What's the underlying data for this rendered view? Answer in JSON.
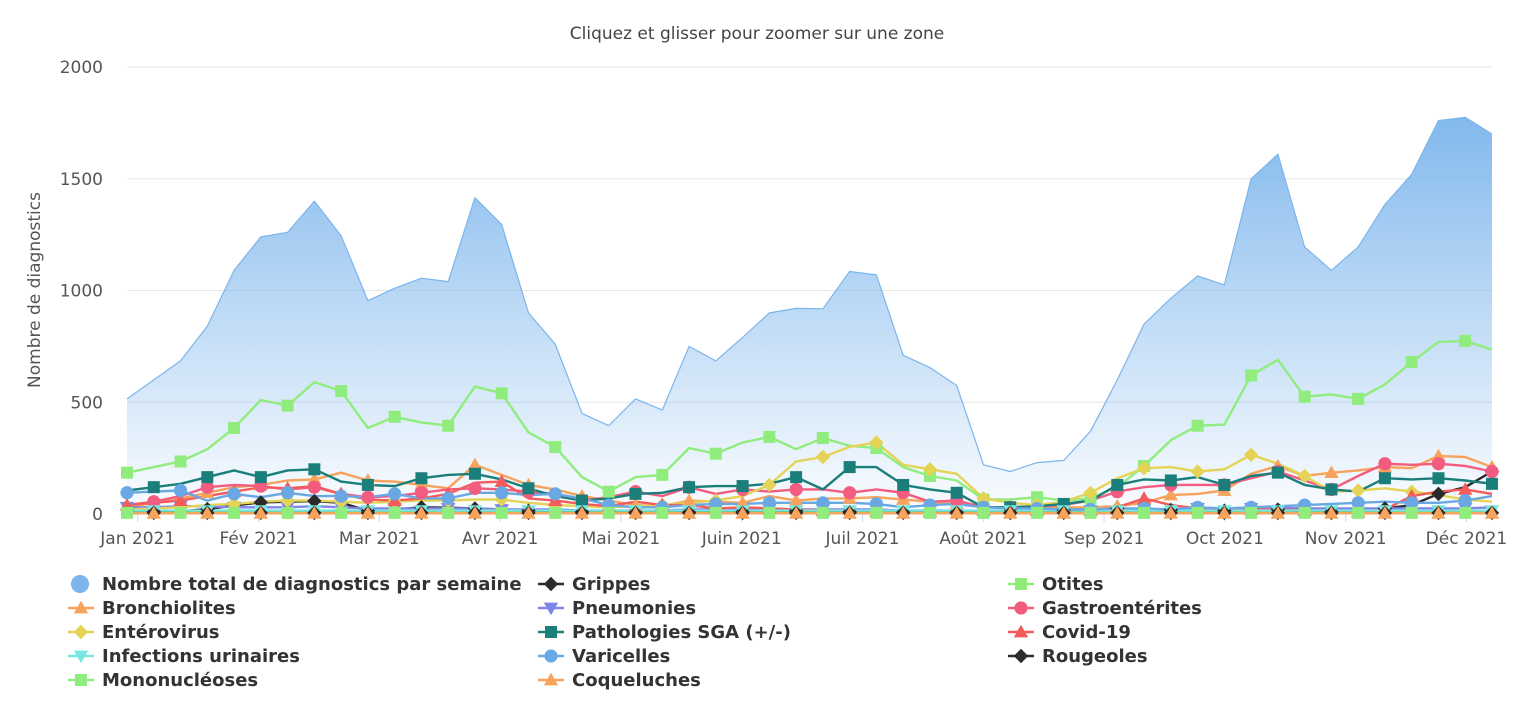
{
  "chart_data": {
    "type": "area",
    "subtitle": "Cliquez et glisser pour zoomer sur une zone",
    "ylabel": "Nombre de diagnostics",
    "ylim": [
      0,
      2000
    ],
    "yticks": [
      "0",
      "500",
      "1000",
      "1500",
      "2000"
    ],
    "xticks": [
      "Jan 2021",
      "Fév 2021",
      "Mar 2021",
      "Avr 2021",
      "Mai 2021",
      "Juin 2021",
      "Juil 2021",
      "Août 2021",
      "Sep 2021",
      "Oct 2021",
      "Nov 2021",
      "Déc 2021"
    ],
    "grid": true,
    "legend_position": "bottom",
    "series": [
      {
        "name": "Nombre total de diagnostics par semaine",
        "kind": "area",
        "color": "#7cb5ec",
        "marker": "circle",
        "values": [
          515,
          600,
          685,
          840,
          1090,
          1240,
          1260,
          1400,
          1245,
          955,
          1010,
          1055,
          1040,
          1415,
          1295,
          900,
          760,
          450,
          395,
          515,
          465,
          750,
          685,
          790,
          900,
          920,
          918,
          1085,
          1070,
          710,
          655,
          575,
          220,
          190,
          230,
          240,
          370,
          600,
          850,
          965,
          1065,
          1025,
          1500,
          1610,
          1195,
          1090,
          1195,
          1385,
          1520,
          1760,
          1775,
          1700
        ]
      },
      {
        "name": "Grippes",
        "kind": "line",
        "color": "#2b2b2b",
        "marker": "diamond",
        "values": [
          10,
          10,
          12,
          22,
          38,
          52,
          55,
          58,
          50,
          15,
          20,
          30,
          28,
          25,
          20,
          15,
          12,
          10,
          8,
          8,
          8,
          8,
          8,
          10,
          12,
          14,
          10,
          10,
          10,
          8,
          6,
          8,
          5,
          5,
          10,
          15,
          20,
          25,
          20,
          18,
          20,
          15,
          18,
          20,
          12,
          10,
          15,
          25,
          40,
          90,
          120,
          190
        ]
      },
      {
        "name": "Otites",
        "kind": "line",
        "color": "#90ed7d",
        "marker": "square",
        "values": [
          185,
          210,
          235,
          290,
          385,
          510,
          485,
          590,
          550,
          385,
          435,
          410,
          395,
          570,
          540,
          365,
          300,
          165,
          100,
          165,
          175,
          295,
          270,
          320,
          345,
          290,
          340,
          305,
          295,
          210,
          170,
          150,
          65,
          65,
          75,
          60,
          70,
          120,
          215,
          330,
          395,
          400,
          620,
          690,
          525,
          535,
          515,
          580,
          680,
          770,
          775,
          735
        ]
      },
      {
        "name": "Bronchiolites",
        "kind": "line",
        "color": "#f7a35c",
        "marker": "triangle",
        "values": [
          30,
          50,
          70,
          95,
          120,
          130,
          150,
          155,
          185,
          150,
          145,
          130,
          115,
          220,
          175,
          130,
          110,
          80,
          60,
          40,
          35,
          60,
          55,
          50,
          80,
          60,
          70,
          70,
          75,
          65,
          55,
          45,
          30,
          30,
          30,
          30,
          30,
          35,
          50,
          85,
          90,
          105,
          180,
          215,
          170,
          185,
          195,
          210,
          205,
          260,
          255,
          210
        ]
      },
      {
        "name": "Pneumonies",
        "kind": "line",
        "color": "#8085e9",
        "marker": "triangle-down",
        "values": [
          30,
          30,
          35,
          35,
          30,
          30,
          30,
          35,
          30,
          25,
          25,
          25,
          25,
          25,
          20,
          20,
          20,
          15,
          15,
          15,
          15,
          20,
          20,
          20,
          20,
          20,
          20,
          20,
          20,
          15,
          15,
          15,
          10,
          10,
          15,
          15,
          15,
          20,
          20,
          20,
          25,
          25,
          25,
          30,
          25,
          25,
          25,
          25,
          25,
          25,
          25,
          30
        ]
      },
      {
        "name": "Gastroentérites",
        "kind": "line",
        "color": "#f15c80",
        "marker": "circle",
        "values": [
          40,
          55,
          80,
          120,
          130,
          125,
          110,
          120,
          90,
          75,
          80,
          95,
          110,
          115,
          110,
          100,
          90,
          60,
          75,
          100,
          80,
          120,
          90,
          110,
          100,
          110,
          110,
          95,
          110,
          95,
          55,
          60,
          30,
          30,
          35,
          40,
          60,
          100,
          120,
          130,
          130,
          130,
          160,
          190,
          150,
          110,
          170,
          225,
          220,
          225,
          215,
          190
        ]
      },
      {
        "name": "Entérovirus",
        "kind": "line",
        "color": "#e4d354",
        "marker": "diamond",
        "values": [
          20,
          25,
          30,
          40,
          45,
          55,
          60,
          60,
          55,
          50,
          55,
          60,
          60,
          65,
          65,
          50,
          40,
          35,
          30,
          35,
          40,
          50,
          60,
          80,
          130,
          235,
          255,
          300,
          320,
          220,
          200,
          180,
          70,
          50,
          40,
          55,
          95,
          160,
          205,
          210,
          190,
          200,
          265,
          225,
          170,
          100,
          105,
          115,
          100,
          85,
          65,
          55
        ]
      },
      {
        "name": "Pathologies SGA (+/-)",
        "kind": "line",
        "color": "#1a7f7a",
        "marker": "square",
        "values": [
          105,
          120,
          135,
          165,
          195,
          165,
          195,
          200,
          145,
          130,
          125,
          160,
          175,
          180,
          155,
          115,
          80,
          60,
          70,
          90,
          95,
          120,
          125,
          125,
          135,
          165,
          110,
          210,
          210,
          130,
          110,
          95,
          30,
          30,
          35,
          45,
          60,
          130,
          155,
          150,
          165,
          130,
          170,
          185,
          130,
          110,
          100,
          160,
          155,
          160,
          150,
          135
        ]
      },
      {
        "name": "Covid-19",
        "kind": "line",
        "color": "#f45b5b",
        "marker": "triangle",
        "values": [
          40,
          50,
          60,
          80,
          100,
          120,
          115,
          125,
          90,
          65,
          60,
          70,
          90,
          140,
          145,
          70,
          60,
          45,
          35,
          55,
          40,
          40,
          25,
          30,
          25,
          20,
          15,
          15,
          10,
          10,
          10,
          10,
          15,
          15,
          15,
          15,
          15,
          30,
          70,
          40,
          25,
          20,
          20,
          20,
          15,
          10,
          10,
          20,
          80,
          100,
          110,
          90
        ]
      },
      {
        "name": "Infections urinaires",
        "kind": "line",
        "color": "#76e8e0",
        "marker": "triangle-down",
        "values": [
          15,
          15,
          15,
          15,
          15,
          15,
          15,
          15,
          15,
          15,
          15,
          15,
          15,
          15,
          15,
          15,
          15,
          15,
          15,
          15,
          15,
          15,
          15,
          15,
          15,
          15,
          15,
          15,
          15,
          15,
          15,
          15,
          15,
          15,
          15,
          15,
          15,
          15,
          15,
          15,
          15,
          15,
          15,
          15,
          15,
          15,
          15,
          15,
          15,
          15,
          15,
          15
        ]
      },
      {
        "name": "Varicelles",
        "kind": "line",
        "color": "#6aa8e4",
        "marker": "circle",
        "values": [
          95,
          100,
          105,
          60,
          90,
          75,
          95,
          80,
          80,
          75,
          90,
          70,
          70,
          95,
          95,
          85,
          90,
          70,
          40,
          30,
          30,
          40,
          45,
          45,
          50,
          50,
          50,
          50,
          45,
          30,
          40,
          45,
          30,
          25,
          25,
          20,
          20,
          25,
          25,
          20,
          30,
          25,
          30,
          35,
          40,
          45,
          50,
          55,
          50,
          50,
          60,
          80
        ]
      },
      {
        "name": "Rougeoles",
        "kind": "line",
        "color": "#2b2b2b",
        "marker": "diamond",
        "values": [
          5,
          5,
          5,
          5,
          5,
          5,
          5,
          5,
          5,
          5,
          5,
          5,
          5,
          5,
          5,
          5,
          5,
          5,
          5,
          5,
          5,
          5,
          5,
          5,
          5,
          5,
          5,
          5,
          5,
          5,
          5,
          5,
          5,
          5,
          5,
          5,
          5,
          5,
          5,
          5,
          5,
          5,
          5,
          5,
          5,
          5,
          5,
          5,
          5,
          5,
          5,
          5
        ]
      },
      {
        "name": "Mononucléoses",
        "kind": "line",
        "color": "#90ed7d",
        "marker": "square",
        "values": [
          5,
          5,
          5,
          5,
          5,
          5,
          5,
          5,
          5,
          5,
          5,
          5,
          5,
          5,
          5,
          5,
          5,
          5,
          5,
          5,
          5,
          5,
          5,
          5,
          5,
          5,
          5,
          5,
          5,
          5,
          5,
          5,
          5,
          5,
          5,
          5,
          5,
          5,
          5,
          5,
          5,
          5,
          5,
          5,
          5,
          5,
          5,
          5,
          5,
          5,
          5,
          5
        ]
      },
      {
        "name": "Coqueluches",
        "kind": "line",
        "color": "#f7a35c",
        "marker": "triangle",
        "values": [
          3,
          3,
          3,
          3,
          3,
          3,
          3,
          3,
          3,
          3,
          3,
          3,
          3,
          3,
          3,
          3,
          3,
          3,
          3,
          3,
          3,
          3,
          3,
          3,
          3,
          3,
          3,
          3,
          3,
          3,
          3,
          3,
          3,
          3,
          3,
          3,
          3,
          3,
          3,
          3,
          3,
          3,
          3,
          3,
          3,
          3,
          3,
          3,
          3,
          3,
          3,
          3
        ]
      }
    ]
  }
}
